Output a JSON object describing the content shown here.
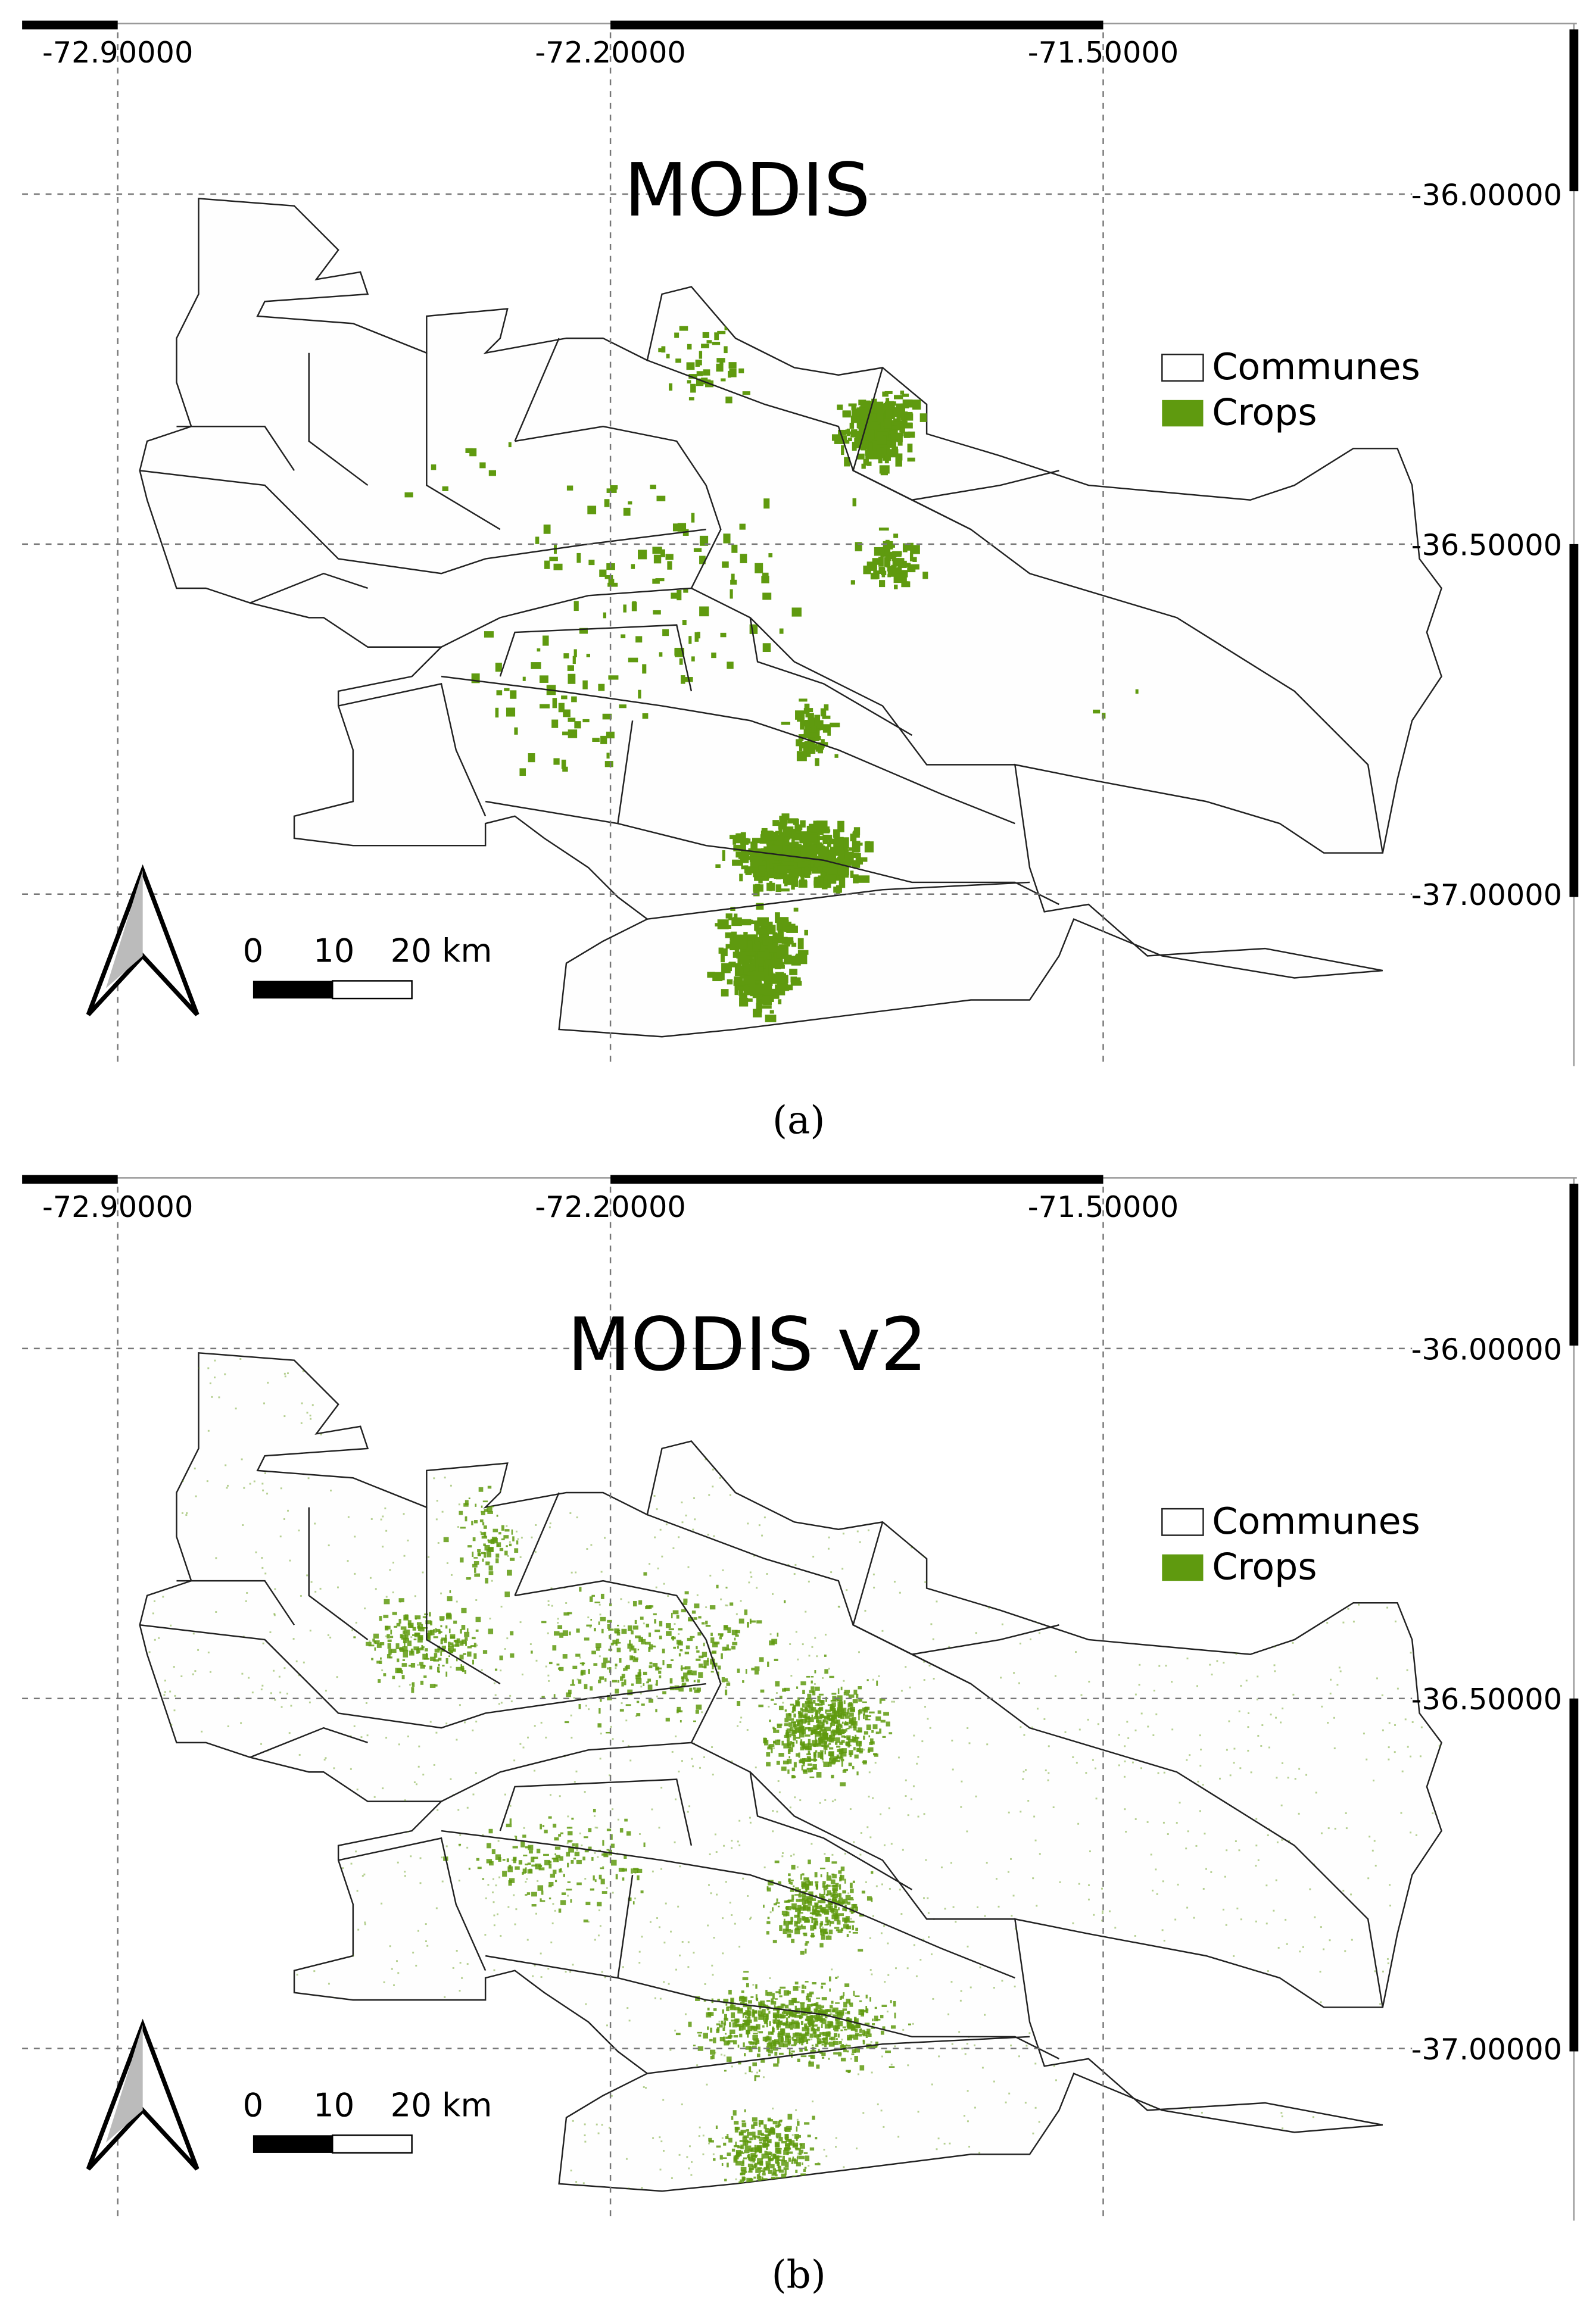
{
  "panels": [
    {
      "title": "MODIS",
      "x_labels": [
        "-72.90000",
        "-72.20000",
        "-71.50000"
      ],
      "y_labels": [
        "-36.00000",
        "-36.50000",
        "-37.00000"
      ],
      "legend": [
        "Communes",
        "Crops"
      ],
      "scale_labels": [
        "0",
        "10",
        "20 km"
      ],
      "caption": "(a)"
    },
    {
      "title": "MODIS v2",
      "x_labels": [
        "-72.90000",
        "-72.20000",
        "-71.50000"
      ],
      "y_labels": [
        "-36.00000",
        "-36.50000",
        "-37.00000"
      ],
      "legend": [
        "Communes",
        "Crops"
      ],
      "scale_labels": [
        "0",
        "10",
        "20 km"
      ],
      "caption": "(b)"
    }
  ]
}
